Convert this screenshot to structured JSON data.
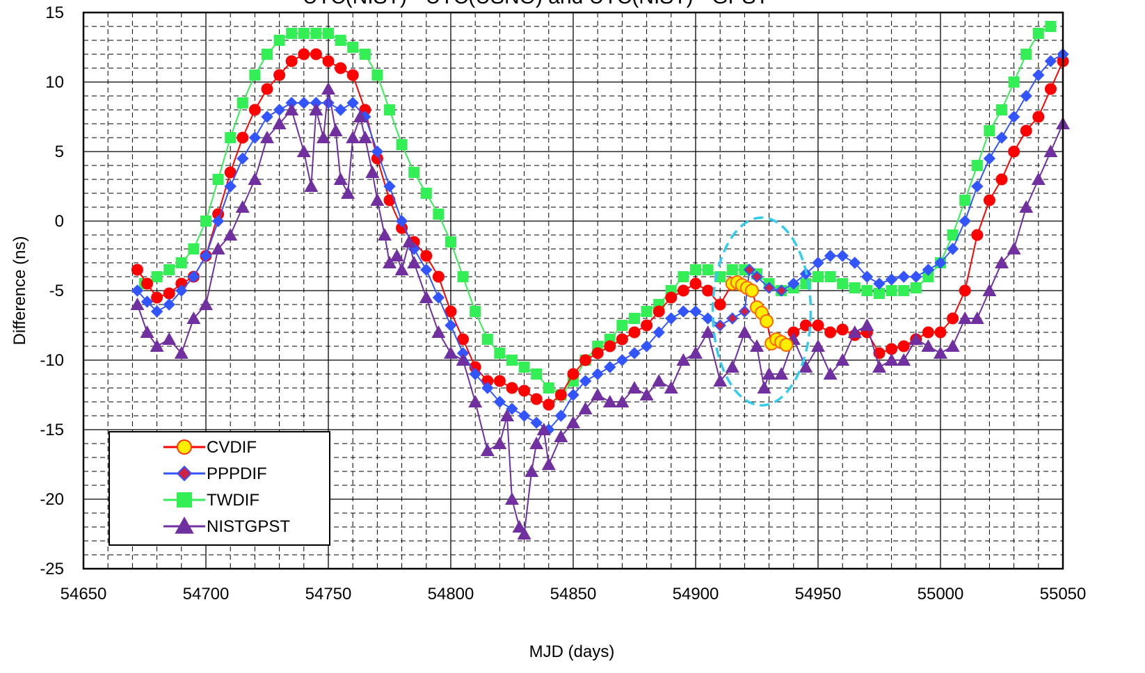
{
  "chart_data": {
    "type": "line",
    "title": "UTC(NIST) - UTC(USNO) and UTC(NIST) - GPST",
    "xlabel": "MJD (days)",
    "ylabel": "Difference (ns)",
    "xlim": [
      54650,
      55050
    ],
    "ylim": [
      -25,
      15
    ],
    "x_ticks": [
      54650,
      54700,
      54750,
      54800,
      54850,
      54900,
      54950,
      55000,
      55050
    ],
    "y_ticks": [
      15,
      10,
      5,
      0,
      -5,
      -10,
      -15,
      -20,
      -25
    ],
    "x_tick_labels": [
      "54650",
      "54700",
      "54750",
      "54800",
      "54850",
      "54900",
      "54950",
      "55000",
      "55050"
    ],
    "y_tick_labels": [
      "15",
      "10",
      "5",
      "0",
      "-5",
      "-10",
      "-15",
      "-20",
      "-25"
    ],
    "grid": true,
    "legend_position": "bottom-left",
    "annotation": "dashed cyan ellipse around MJD 54900-54950",
    "series": [
      {
        "name": "CVDIF",
        "color": "#ff0000",
        "marker": "circle",
        "x": [
          54672,
          54676,
          54680,
          54685,
          54690,
          54695,
          54700,
          54705,
          54710,
          54715,
          54720,
          54725,
          54730,
          54735,
          54740,
          54745,
          54750,
          54755,
          54760,
          54765,
          54770,
          54775,
          54780,
          54785,
          54790,
          54795,
          54800,
          54805,
          54810,
          54815,
          54820,
          54825,
          54830,
          54835,
          54840,
          54845,
          54850,
          54855,
          54860,
          54865,
          54870,
          54875,
          54880,
          54885,
          54890,
          54895,
          54900,
          54905,
          54910,
          54915,
          54917,
          54919,
          54921,
          54923,
          54925,
          54927,
          54929,
          54931,
          54933,
          54935,
          54937,
          54940,
          54945,
          54950,
          54955,
          54960,
          54965,
          54970,
          54975,
          54980,
          54985,
          54990,
          54995,
          55000,
          55005,
          55010,
          55015,
          55020,
          55025,
          55030,
          55035,
          55040,
          55045,
          55050
        ],
        "y": [
          -3.5,
          -4.5,
          -5.5,
          -5.2,
          -4.5,
          -4,
          -2.5,
          0.5,
          3.5,
          6,
          8,
          9.5,
          10.5,
          11.5,
          12,
          12,
          11.5,
          11,
          10.5,
          8,
          4.5,
          1.5,
          -0.5,
          -1.5,
          -2.5,
          -4,
          -6.5,
          -8.5,
          -10.5,
          -11.5,
          -11.5,
          -12,
          -12.2,
          -12.8,
          -13.2,
          -12.5,
          -11,
          -10,
          -9.5,
          -9,
          -8.5,
          -8,
          -7.5,
          -6.5,
          -5.5,
          -5,
          -4.5,
          -5,
          -6,
          -4.5,
          -4.4,
          -4.6,
          -4.8,
          -5,
          -6.2,
          -6.6,
          -7.2,
          -8.8,
          -8.5,
          -8.7,
          -8.9,
          -8,
          -7.5,
          -7.5,
          -8,
          -7.8,
          -8.2,
          -8,
          -9.5,
          -9.2,
          -9,
          -8.5,
          -8,
          -8,
          -7,
          -5,
          -1,
          1.5,
          3,
          5,
          6.5,
          7.5,
          9.5,
          11.5
        ]
      },
      {
        "name": "PPPDIF",
        "color": "#3355ff",
        "marker": "diamond",
        "x": [
          54672,
          54676,
          54680,
          54685,
          54690,
          54695,
          54700,
          54705,
          54710,
          54715,
          54720,
          54725,
          54730,
          54735,
          54740,
          54745,
          54750,
          54755,
          54760,
          54765,
          54770,
          54775,
          54780,
          54785,
          54790,
          54795,
          54800,
          54805,
          54810,
          54815,
          54820,
          54825,
          54830,
          54835,
          54840,
          54845,
          54850,
          54855,
          54860,
          54865,
          54870,
          54875,
          54880,
          54885,
          54890,
          54895,
          54900,
          54905,
          54910,
          54915,
          54920,
          54922,
          54925,
          54930,
          54935,
          54940,
          54945,
          54950,
          54955,
          54960,
          54965,
          54970,
          54975,
          54980,
          54985,
          54990,
          54995,
          55000,
          55005,
          55010,
          55015,
          55020,
          55025,
          55030,
          55035,
          55040,
          55045,
          55050
        ],
        "y": [
          -5,
          -5.8,
          -6.5,
          -6,
          -5,
          -4,
          -2.5,
          0,
          2.5,
          4.5,
          6,
          7.5,
          8,
          8.5,
          8.5,
          8.5,
          8.5,
          8,
          8.5,
          7.5,
          5,
          2.5,
          0,
          -2,
          -3.5,
          -5.5,
          -7.5,
          -9.5,
          -11,
          -12,
          -13,
          -13.5,
          -14,
          -14.5,
          -15,
          -14,
          -12.5,
          -11.5,
          -11,
          -10.5,
          -10,
          -9.5,
          -9,
          -8,
          -7,
          -6.5,
          -6.5,
          -7,
          -7.5,
          -7,
          -6.5,
          -3.5,
          -4,
          -4.8,
          -5,
          -4.5,
          -3.8,
          -3,
          -2.5,
          -2.5,
          -3,
          -4,
          -4.5,
          -4.2,
          -4,
          -4,
          -3.5,
          -3,
          -2,
          0,
          2.5,
          4.5,
          6,
          7.5,
          9,
          10.5,
          11.5,
          12
        ]
      },
      {
        "name": "TWDIF",
        "color": "#33ee55",
        "marker": "square",
        "x": [
          54675,
          54680,
          54685,
          54690,
          54695,
          54700,
          54705,
          54710,
          54715,
          54720,
          54725,
          54730,
          54735,
          54740,
          54745,
          54750,
          54755,
          54760,
          54765,
          54770,
          54775,
          54780,
          54785,
          54790,
          54795,
          54800,
          54805,
          54810,
          54815,
          54820,
          54825,
          54830,
          54835,
          54840,
          54845,
          54850,
          54855,
          54860,
          54865,
          54870,
          54875,
          54880,
          54885,
          54890,
          54895,
          54900,
          54905,
          54910,
          54915,
          54920,
          54925,
          54930,
          54935,
          54940,
          54945,
          54950,
          54955,
          54960,
          54965,
          54970,
          54975,
          54980,
          54985,
          54990,
          54995,
          55000,
          55005,
          55010,
          55015,
          55020,
          55025,
          55030,
          55035,
          55040,
          55045
        ],
        "y": [
          -4.5,
          -4,
          -3.5,
          -3,
          -2,
          0,
          3,
          6,
          8.5,
          10.5,
          12,
          13,
          13.5,
          13.5,
          13.5,
          13.5,
          13,
          12.5,
          12,
          10.5,
          8,
          5.5,
          3.5,
          2,
          0.5,
          -1.5,
          -4,
          -6.5,
          -8.5,
          -9.5,
          -10,
          -10.5,
          -11,
          -12,
          -12.5,
          -11.5,
          -10,
          -9,
          -8.5,
          -7.5,
          -7,
          -6.5,
          -6,
          -5,
          -4,
          -3.5,
          -3.5,
          -4,
          -3.5,
          -3.5,
          -3.8,
          -4.5,
          -5,
          -4.8,
          -4.5,
          -4,
          -4,
          -4.5,
          -4.8,
          -5,
          -5.2,
          -5,
          -5,
          -4.8,
          -4,
          -3,
          -1,
          1.5,
          4,
          6.5,
          8,
          10,
          12,
          13.5,
          14
        ]
      },
      {
        "name": "NISTGPST",
        "color": "#7030a0",
        "marker": "triangle",
        "x": [
          54672,
          54676,
          54680,
          54685,
          54690,
          54695,
          54700,
          54705,
          54710,
          54715,
          54720,
          54725,
          54730,
          54735,
          54740,
          54743,
          54745,
          54748,
          54750,
          54753,
          54755,
          54758,
          54760,
          54763,
          54765,
          54768,
          54770,
          54773,
          54775,
          54778,
          54780,
          54783,
          54785,
          54790,
          54795,
          54800,
          54805,
          54810,
          54815,
          54820,
          54823,
          54825,
          54828,
          54830,
          54833,
          54835,
          54838,
          54840,
          54845,
          54850,
          54855,
          54860,
          54865,
          54870,
          54875,
          54880,
          54885,
          54890,
          54895,
          54900,
          54905,
          54910,
          54915,
          54920,
          54925,
          54928,
          54930,
          54935,
          54940,
          54945,
          54950,
          54955,
          54960,
          54965,
          54970,
          54975,
          54980,
          54985,
          54990,
          54995,
          55000,
          55005,
          55010,
          55015,
          55020,
          55025,
          55030,
          55035,
          55040,
          55045,
          55050
        ],
        "y": [
          -6,
          -8,
          -9,
          -8.5,
          -9.5,
          -7,
          -6,
          -2,
          -1,
          1,
          3,
          6,
          7,
          8,
          5,
          2.5,
          8,
          6,
          9.5,
          6.5,
          3,
          2,
          6,
          7.5,
          6,
          3.5,
          1.5,
          -1,
          -3,
          -2.5,
          -3.5,
          -1.5,
          -3,
          -5.5,
          -8,
          -9.5,
          -10,
          -13,
          -16.5,
          -16,
          -14,
          -20,
          -22,
          -22.5,
          -18,
          -16,
          -15,
          -17.5,
          -15.5,
          -14.5,
          -13.5,
          -12.5,
          -13,
          -13,
          -12,
          -12.5,
          -11.5,
          -12,
          -10,
          -9.5,
          -8,
          -11.5,
          -10.5,
          -8,
          -9,
          -12,
          -11,
          -11,
          -8.5,
          -10.5,
          -9,
          -11,
          -10,
          -8,
          -7.5,
          -10.5,
          -10,
          -10,
          -8.5,
          -9,
          -9.5,
          -9,
          -7,
          -7,
          -5,
          -3,
          -2,
          1,
          3,
          5,
          7
        ]
      }
    ]
  }
}
